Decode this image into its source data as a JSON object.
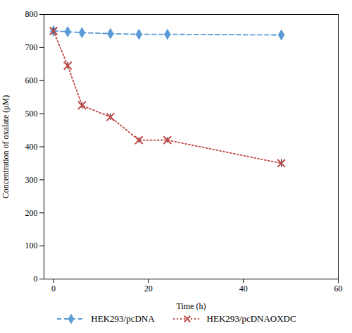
{
  "chart_data": {
    "type": "line",
    "xlabel": "Time (h)",
    "ylabel": "Concentration of oxalate (μM)",
    "x": [
      0,
      3,
      6,
      12,
      18,
      24,
      48
    ],
    "series": [
      {
        "name": "HEK293/pcDNA",
        "color": "#5B9BD5",
        "marker": "diamond",
        "line_style": "dashed",
        "values": [
          750,
          748,
          745,
          742,
          740,
          740,
          738
        ],
        "errors": [
          4,
          4,
          4,
          4,
          4,
          4,
          4
        ]
      },
      {
        "name": "HEK293/pcDNAOXDC",
        "color": "#BE4B48",
        "marker": "x",
        "line_style": "dotted",
        "values": [
          750,
          645,
          525,
          490,
          420,
          420,
          350
        ],
        "errors": [
          8,
          10,
          10,
          10,
          8,
          8,
          12
        ]
      }
    ],
    "xlim": [
      -2,
      60
    ],
    "xticks": [
      0,
      20,
      40,
      60
    ],
    "ylim": [
      0,
      800
    ],
    "yticks": [
      0,
      100,
      200,
      300,
      400,
      500,
      600,
      700,
      800
    ],
    "grid": false,
    "legend": "bottom"
  }
}
